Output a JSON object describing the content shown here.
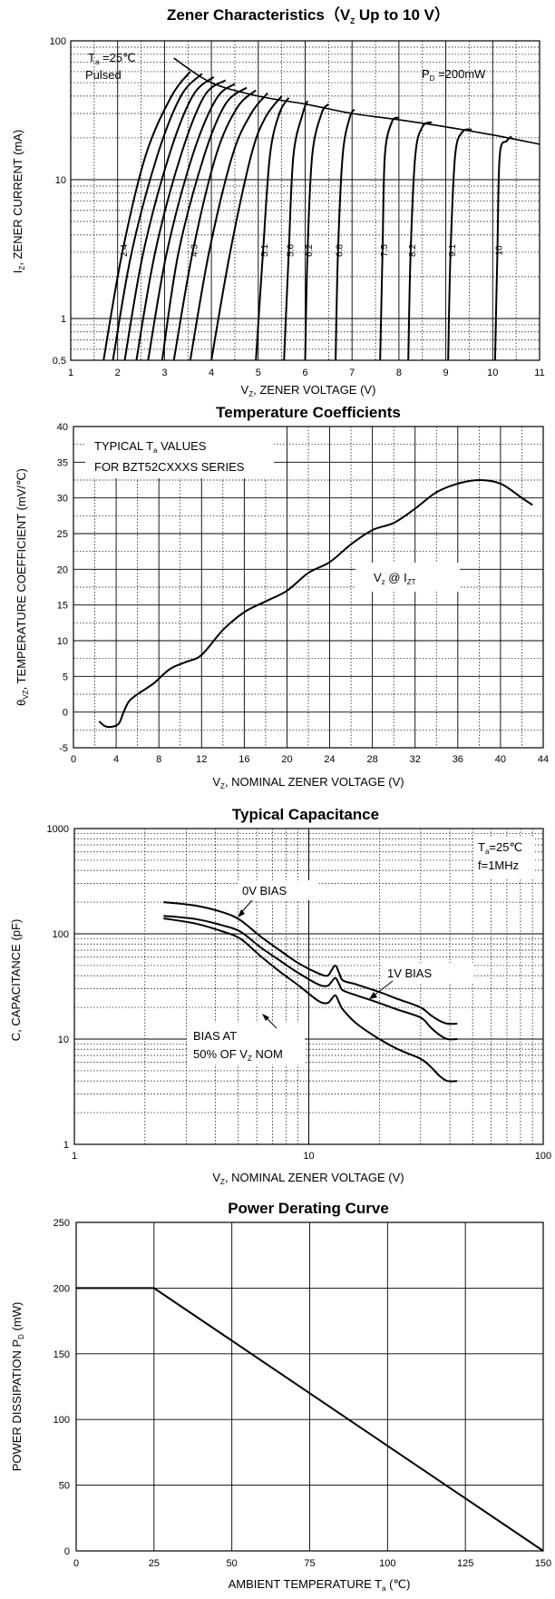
{
  "chart_data": [
    {
      "type": "line",
      "title": "Zener Characteristics（V",
      "title_sub": "Z",
      "title_end": " Up to 10 V）",
      "xlabel": "V",
      "xlabel_sub": "Z",
      "xlabel_end": ", ZENER VOLTAGE (V)",
      "ylabel": "I",
      "ylabel_sub": "Z",
      "ylabel_end": ", ZENER CURRENT (mA)",
      "xlim": [
        1,
        11
      ],
      "ylim": [
        0.5,
        100
      ],
      "y_scale": "log",
      "xticks": [
        "1",
        "2",
        "3",
        "4",
        "5",
        "6",
        "7",
        "8",
        "9",
        "10",
        "11"
      ],
      "yticks": [
        {
          "v": 100,
          "label": "100"
        },
        {
          "v": 10,
          "label": "10"
        },
        {
          "v": 1,
          "label": "1"
        },
        {
          "v": 0.5,
          "label": "0.5"
        }
      ],
      "annotations": {
        "ta": "T",
        "ta_sub": "a",
        "ta_end": " =25℃",
        "pulsed": "Pulsed",
        "pd": "P",
        "pd_sub": "D",
        "pd_end": " =200mW"
      },
      "grid": true,
      "limit_curve": [
        [
          3.2,
          75
        ],
        [
          4,
          50
        ],
        [
          5,
          40
        ],
        [
          6,
          35
        ],
        [
          7,
          30
        ],
        [
          8,
          27
        ],
        [
          9,
          24
        ],
        [
          10,
          21
        ],
        [
          11,
          18
        ]
      ],
      "series": [
        {
          "name": "2.4",
          "points": [
            [
              1.7,
              0.5
            ],
            [
              2.1,
              3
            ],
            [
              2.6,
              15
            ],
            [
              3.15,
              40
            ],
            [
              3.55,
              60
            ]
          ]
        },
        {
          "name": "",
          "points": [
            [
              1.9,
              0.5
            ],
            [
              2.3,
              3
            ],
            [
              2.85,
              15
            ],
            [
              3.35,
              40
            ],
            [
              3.8,
              58
            ]
          ]
        },
        {
          "name": "",
          "points": [
            [
              2.15,
              0.5
            ],
            [
              2.55,
              3
            ],
            [
              3.1,
              15
            ],
            [
              3.6,
              40
            ],
            [
              4.05,
              55
            ]
          ]
        },
        {
          "name": "",
          "points": [
            [
              2.4,
              0.5
            ],
            [
              2.8,
              3
            ],
            [
              3.35,
              15
            ],
            [
              3.85,
              40
            ],
            [
              4.3,
              52
            ]
          ]
        },
        {
          "name": "",
          "points": [
            [
              2.65,
              0.5
            ],
            [
              3.05,
              3
            ],
            [
              3.6,
              15
            ],
            [
              4.1,
              38
            ],
            [
              4.5,
              49
            ]
          ]
        },
        {
          "name": "",
          "points": [
            [
              2.95,
              0.5
            ],
            [
              3.3,
              3
            ],
            [
              3.85,
              15
            ],
            [
              4.3,
              35
            ],
            [
              4.75,
              46
            ]
          ]
        },
        {
          "name": "4.3",
          "points": [
            [
              3.2,
              0.5
            ],
            [
              3.6,
              3
            ],
            [
              4.1,
              15
            ],
            [
              4.55,
              33
            ],
            [
              4.95,
              44
            ]
          ]
        },
        {
          "name": "",
          "points": [
            [
              3.55,
              0.5
            ],
            [
              3.95,
              3
            ],
            [
              4.45,
              15
            ],
            [
              4.85,
              30
            ],
            [
              5.2,
              42
            ]
          ]
        },
        {
          "name": "",
          "points": [
            [
              4.0,
              0.5
            ],
            [
              4.4,
              3
            ],
            [
              4.85,
              15
            ],
            [
              5.15,
              28
            ],
            [
              5.5,
              40
            ]
          ]
        },
        {
          "name": "5.1",
          "points": [
            [
              4.95,
              0.5
            ],
            [
              5.1,
              3
            ],
            [
              5.25,
              15
            ],
            [
              5.45,
              30
            ],
            [
              5.65,
              39
            ]
          ]
        },
        {
          "name": "5.6",
          "points": [
            [
              5.55,
              0.5
            ],
            [
              5.65,
              3
            ],
            [
              5.75,
              15
            ],
            [
              5.95,
              30
            ],
            [
              6.05,
              37
            ]
          ]
        },
        {
          "name": "6.2",
          "points": [
            [
              6.0,
              0.5
            ],
            [
              6.05,
              3
            ],
            [
              6.15,
              15
            ],
            [
              6.35,
              30
            ],
            [
              6.5,
              35
            ]
          ]
        },
        {
          "name": "6.8",
          "points": [
            [
              6.65,
              0.5
            ],
            [
              6.7,
              3
            ],
            [
              6.8,
              15
            ],
            [
              6.95,
              28
            ],
            [
              7.05,
              32
            ]
          ]
        },
        {
          "name": "7.5",
          "points": [
            [
              7.6,
              0.5
            ],
            [
              7.65,
              3
            ],
            [
              7.7,
              15
            ],
            [
              7.85,
              26
            ],
            [
              8.0,
              28
            ]
          ]
        },
        {
          "name": "8.2",
          "points": [
            [
              8.2,
              0.5
            ],
            [
              8.25,
              3
            ],
            [
              8.35,
              15
            ],
            [
              8.5,
              24
            ],
            [
              8.7,
              26
            ]
          ]
        },
        {
          "name": "9.1",
          "points": [
            [
              9.05,
              0.5
            ],
            [
              9.1,
              3
            ],
            [
              9.2,
              15
            ],
            [
              9.35,
              22
            ],
            [
              9.55,
              23
            ]
          ]
        },
        {
          "name": "10",
          "points": [
            [
              10.05,
              0.5
            ],
            [
              10.1,
              3
            ],
            [
              10.15,
              15
            ],
            [
              10.3,
              19
            ],
            [
              10.4,
              20.5
            ]
          ]
        }
      ]
    },
    {
      "type": "line",
      "title": "Temperature Coefficients",
      "xlabel": "V",
      "xlabel_sub": "Z",
      "xlabel_end": ", NOMINAL ZENER VOLTAGE (V)",
      "ylabel": "θ",
      "ylabel_sub": "VZ",
      "ylabel_end": ", TEMPERATURE COEFFICIENT (mV/℃)",
      "xlim": [
        0,
        44
      ],
      "ylim": [
        -5,
        40
      ],
      "xticks": [
        "0",
        "4",
        "8",
        "12",
        "16",
        "20",
        "24",
        "28",
        "32",
        "36",
        "40",
        "44"
      ],
      "yticks": [
        "-5",
        "0",
        "5",
        "10",
        "15",
        "20",
        "25",
        "30",
        "35",
        "40"
      ],
      "annotations": {
        "typ1": "TYPICAL T",
        "typ1_sub": "a",
        "typ1_end": " VALUES",
        "typ2": "FOR BZT52CXXXS SERIES",
        "vz": "V",
        "vz_sub": "z",
        "vz_mid": " @ I",
        "vz_sub2": "ZT"
      },
      "grid": true,
      "series": [
        {
          "name": "",
          "points": [
            [
              2.4,
              -1.3
            ],
            [
              3.0,
              -2.0
            ],
            [
              3.8,
              -2.0
            ],
            [
              4.3,
              -1.5
            ],
            [
              4.7,
              0.0
            ],
            [
              5.2,
              1.5
            ],
            [
              6.0,
              2.5
            ],
            [
              7.5,
              4.0
            ],
            [
              9.0,
              6.0
            ],
            [
              10.5,
              7.0
            ],
            [
              12,
              8.0
            ],
            [
              14,
              11.5
            ],
            [
              16,
              14.0
            ],
            [
              18,
              15.5
            ],
            [
              20,
              17.0
            ],
            [
              22,
              19.5
            ],
            [
              24,
              21.0
            ],
            [
              26,
              23.5
            ],
            [
              28,
              25.5
            ],
            [
              30,
              26.5
            ],
            [
              32,
              28.5
            ],
            [
              34,
              30.8
            ],
            [
              36,
              32.0
            ],
            [
              38,
              32.5
            ],
            [
              40,
              32.0
            ],
            [
              42,
              30.0
            ],
            [
              43,
              29.0
            ]
          ]
        }
      ]
    },
    {
      "type": "line",
      "title": "Typical Capacitance",
      "xlabel": "V",
      "xlabel_sub": "Z",
      "xlabel_end": ", NOMINAL ZENER VOLTAGE (V)",
      "ylabel": "C, CAPACITANCE (pF)",
      "xlim": [
        1,
        100
      ],
      "ylim": [
        1,
        1000
      ],
      "x_scale": "log",
      "y_scale": "log",
      "xticks": [
        {
          "v": 1,
          "label": "1"
        },
        {
          "v": 10,
          "label": "10"
        },
        {
          "v": 100,
          "label": "100"
        }
      ],
      "yticks": [
        {
          "v": 1000,
          "label": "1000"
        },
        {
          "v": 100,
          "label": "100"
        },
        {
          "v": 10,
          "label": "10"
        },
        {
          "v": 1,
          "label": "1"
        }
      ],
      "annotations": {
        "ta": "T",
        "ta_sub": "a",
        "ta_end": "=25℃",
        "freq": "f=1MHz",
        "zero": "0V BIAS",
        "one": "1V BIAS",
        "half1": "BIAS AT",
        "half2": "50% OF V",
        "half2_sub": "Z",
        "half2_end": " NOM"
      },
      "grid": true,
      "series": [
        {
          "name": "0V BIAS",
          "points": [
            [
              2.4,
              200
            ],
            [
              3.3,
              185
            ],
            [
              4.3,
              160
            ],
            [
              5.1,
              135
            ],
            [
              6.2,
              95
            ],
            [
              7.5,
              70
            ],
            [
              9.1,
              52
            ],
            [
              11,
              42
            ],
            [
              12,
              40
            ],
            [
              12.5,
              45
            ],
            [
              13,
              50
            ],
            [
              13.5,
              42
            ],
            [
              14,
              36
            ],
            [
              16,
              33
            ],
            [
              20,
              28
            ],
            [
              24,
              24
            ],
            [
              30,
              20
            ],
            [
              33,
              17
            ],
            [
              36,
              15
            ],
            [
              39,
              14
            ],
            [
              43,
              14
            ]
          ]
        },
        {
          "name": "1V BIAS",
          "points": [
            [
              2.4,
              148
            ],
            [
              3.3,
              138
            ],
            [
              4.3,
              120
            ],
            [
              5.1,
              105
            ],
            [
              6.2,
              75
            ],
            [
              7.5,
              56
            ],
            [
              9.1,
              42
            ],
            [
              11,
              33
            ],
            [
              12,
              32
            ],
            [
              12.5,
              35
            ],
            [
              13,
              38
            ],
            [
              13.5,
              33
            ],
            [
              14,
              29
            ],
            [
              16,
              26
            ],
            [
              20,
              22
            ],
            [
              24,
              19
            ],
            [
              30,
              16
            ],
            [
              33,
              13
            ],
            [
              36,
              11
            ],
            [
              39,
              10
            ],
            [
              43,
              10
            ]
          ]
        },
        {
          "name": "BIAS AT 50% OF VZ NOM",
          "points": [
            [
              2.4,
              140
            ],
            [
              3.3,
              125
            ],
            [
              4.3,
              105
            ],
            [
              5.1,
              90
            ],
            [
              6.2,
              62
            ],
            [
              7.5,
              44
            ],
            [
              9.1,
              32
            ],
            [
              11,
              23
            ],
            [
              12,
              22
            ],
            [
              12.5,
              24
            ],
            [
              13,
              26
            ],
            [
              13.5,
              22
            ],
            [
              14,
              19
            ],
            [
              16,
              14
            ],
            [
              20,
              10
            ],
            [
              24,
              8
            ],
            [
              30,
              6.5
            ],
            [
              33,
              5.5
            ],
            [
              36,
              4.5
            ],
            [
              39,
              4
            ],
            [
              43,
              4
            ]
          ]
        }
      ]
    },
    {
      "type": "line",
      "title": "Power Derating Curve",
      "xlabel": "AMBIENT TEMPERATURE    T",
      "xlabel_sub": "a",
      "xlabel_end": "    (℃)",
      "ylabel": "POWER DISSIPATION    P",
      "ylabel_sub": "D",
      "ylabel_end": "  (mW)",
      "xlim": [
        0,
        150
      ],
      "ylim": [
        0,
        250
      ],
      "xticks": [
        "0",
        "25",
        "50",
        "75",
        "100",
        "125",
        "150"
      ],
      "yticks": [
        "0",
        "50",
        "100",
        "150",
        "200",
        "250"
      ],
      "grid": true,
      "series": [
        {
          "name": "",
          "points": [
            [
              0,
              200
            ],
            [
              25,
              200
            ],
            [
              150,
              0
            ]
          ]
        }
      ]
    }
  ]
}
